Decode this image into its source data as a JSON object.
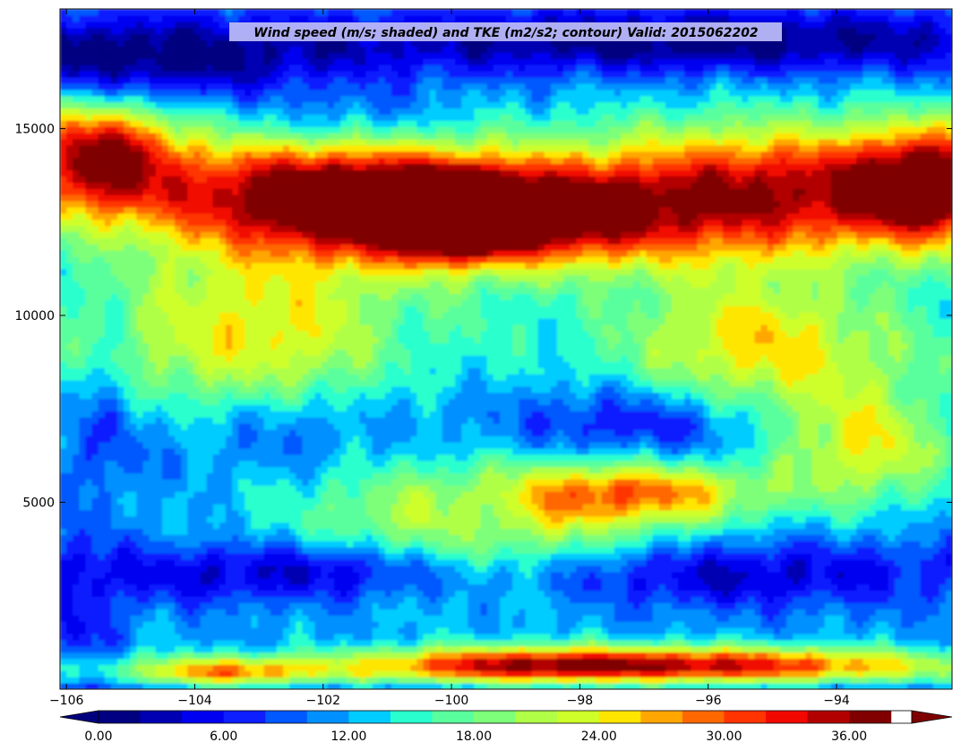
{
  "chart_data": {
    "type": "heatmap",
    "title": "Wind speed (m/s; shaded) and TKE (m2/s2; contour) Valid: 2015062202",
    "xlabel": "",
    "ylabel": "",
    "xlim": [
      -106.1,
      -92.2
    ],
    "ylim": [
      0,
      18200
    ],
    "x_ticks": [
      -106,
      -104,
      -102,
      -100,
      -98,
      -96,
      -94
    ],
    "y_ticks": [
      5000,
      10000,
      15000
    ],
    "grid": false,
    "colorbar": {
      "orientation": "horizontal",
      "placement": "bottom",
      "min": 0,
      "max": 39,
      "extend": "both",
      "tick_values": [
        0,
        6,
        12,
        18,
        24,
        30,
        36
      ],
      "tick_labels": [
        "0.00",
        "6.00",
        "12.00",
        "18.00",
        "24.00",
        "30.00",
        "36.00"
      ],
      "levels": [
        0,
        2,
        4,
        6,
        8,
        10,
        12,
        14,
        16,
        18,
        20,
        22,
        24,
        26,
        28,
        30,
        32,
        34,
        36,
        38
      ],
      "colors": [
        "#000080",
        "#0000b2",
        "#0000f1",
        "#0d1eff",
        "#0058ff",
        "#0090ff",
        "#00ccff",
        "#29ffce",
        "#5aff9d",
        "#7dff7a",
        "#b0ff46",
        "#ceff29",
        "#ffe600",
        "#ffa700",
        "#ff6800",
        "#ff3400",
        "#f10800",
        "#b20000",
        "#800000"
      ],
      "under_color": "#00007f",
      "over_color": "#7f0000"
    },
    "features": [
      {
        "x": -100.0,
        "y": 12700,
        "value": 25,
        "sx": 0.9,
        "sy": 900
      },
      {
        "x": -102.0,
        "y": 13200,
        "value": 21,
        "sx": 2.5,
        "sy": 1500
      },
      {
        "x": -99.0,
        "y": 12600,
        "value": 21,
        "sx": 2.5,
        "sy": 1300
      },
      {
        "x": -105.5,
        "y": 14300,
        "value": 21,
        "sx": 1.2,
        "sy": 1400
      },
      {
        "x": -95.0,
        "y": 13300,
        "value": 17,
        "sx": 3.0,
        "sy": 1800
      },
      {
        "x": -92.5,
        "y": 13500,
        "value": 18,
        "sx": 1.2,
        "sy": 1500
      },
      {
        "x": -103.0,
        "y": 9500,
        "value": 13,
        "sx": 3.0,
        "sy": 2500
      },
      {
        "x": -95.0,
        "y": 9200,
        "value": 14,
        "sx": 2.5,
        "sy": 2000
      },
      {
        "x": -99.5,
        "y": 4500,
        "value": 12,
        "sx": 3.0,
        "sy": 1800
      },
      {
        "x": -93.5,
        "y": 6500,
        "value": 14,
        "sx": 1.5,
        "sy": 1500
      },
      {
        "x": -97.0,
        "y": 5300,
        "value": 14,
        "sx": 2.0,
        "sy": 800
      },
      {
        "x": -99.0,
        "y": 650,
        "value": 17,
        "sx": 2.5,
        "sy": 500
      },
      {
        "x": -95.5,
        "y": 650,
        "value": 16,
        "sx": 3.0,
        "sy": 500
      },
      {
        "x": -103.5,
        "y": 450,
        "value": 13,
        "sx": 1.5,
        "sy": 400
      },
      {
        "x": -106.0,
        "y": 16800,
        "value": -5,
        "sx": 5.0,
        "sy": 1000
      },
      {
        "x": -96.0,
        "y": 17300,
        "value": -5,
        "sx": 4.0,
        "sy": 900
      },
      {
        "x": -104.5,
        "y": 16400,
        "value": -4,
        "sx": 2.0,
        "sy": 800
      },
      {
        "x": -101.5,
        "y": 15200,
        "value": -4,
        "sx": 1.5,
        "sy": 900
      },
      {
        "x": -101.8,
        "y": 3200,
        "value": -6,
        "sx": 1.6,
        "sy": 800
      },
      {
        "x": -96.0,
        "y": 3000,
        "value": -5,
        "sx": 2.5,
        "sy": 900
      },
      {
        "x": -104.0,
        "y": 3000,
        "value": -3,
        "sx": 1.2,
        "sy": 700
      },
      {
        "x": -97.0,
        "y": 7200,
        "value": -5,
        "sx": 1.8,
        "sy": 900
      },
      {
        "x": -99.5,
        "y": 4700,
        "value": -4,
        "sx": 0.7,
        "sy": 900
      },
      {
        "x": -105.8,
        "y": 1500,
        "value": -5,
        "sx": 0.6,
        "sy": 2000
      },
      {
        "x": -105.3,
        "y": 8000,
        "value": -3,
        "sx": 0.4,
        "sy": 3000
      },
      {
        "x": -100.8,
        "y": 9000,
        "value": -2,
        "sx": 0.8,
        "sy": 2000
      },
      {
        "x": -102.5,
        "y": 7200,
        "value": -3,
        "sx": 1.0,
        "sy": 1200
      },
      {
        "x": -93.8,
        "y": 10300,
        "value": -2,
        "sx": 0.9,
        "sy": 1800
      }
    ]
  }
}
